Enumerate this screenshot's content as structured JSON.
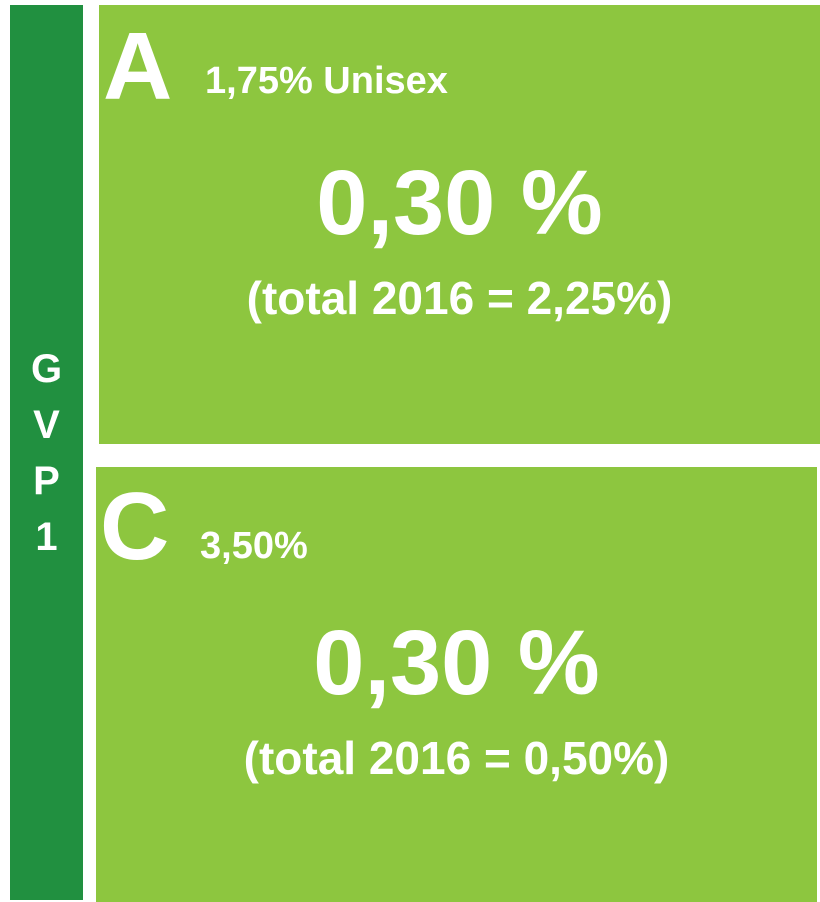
{
  "sidebar": {
    "label": [
      "G",
      "V",
      "P",
      "1"
    ]
  },
  "panels": [
    {
      "letter": "A",
      "subtitle": "1,75% Unisex",
      "headline": "0,30 %",
      "detail": "(total 2016 = 2,25%)"
    },
    {
      "letter": "C",
      "subtitle": "3,50%",
      "headline": "0,30 %",
      "detail": "(total 2016 = 0,50%)"
    }
  ]
}
